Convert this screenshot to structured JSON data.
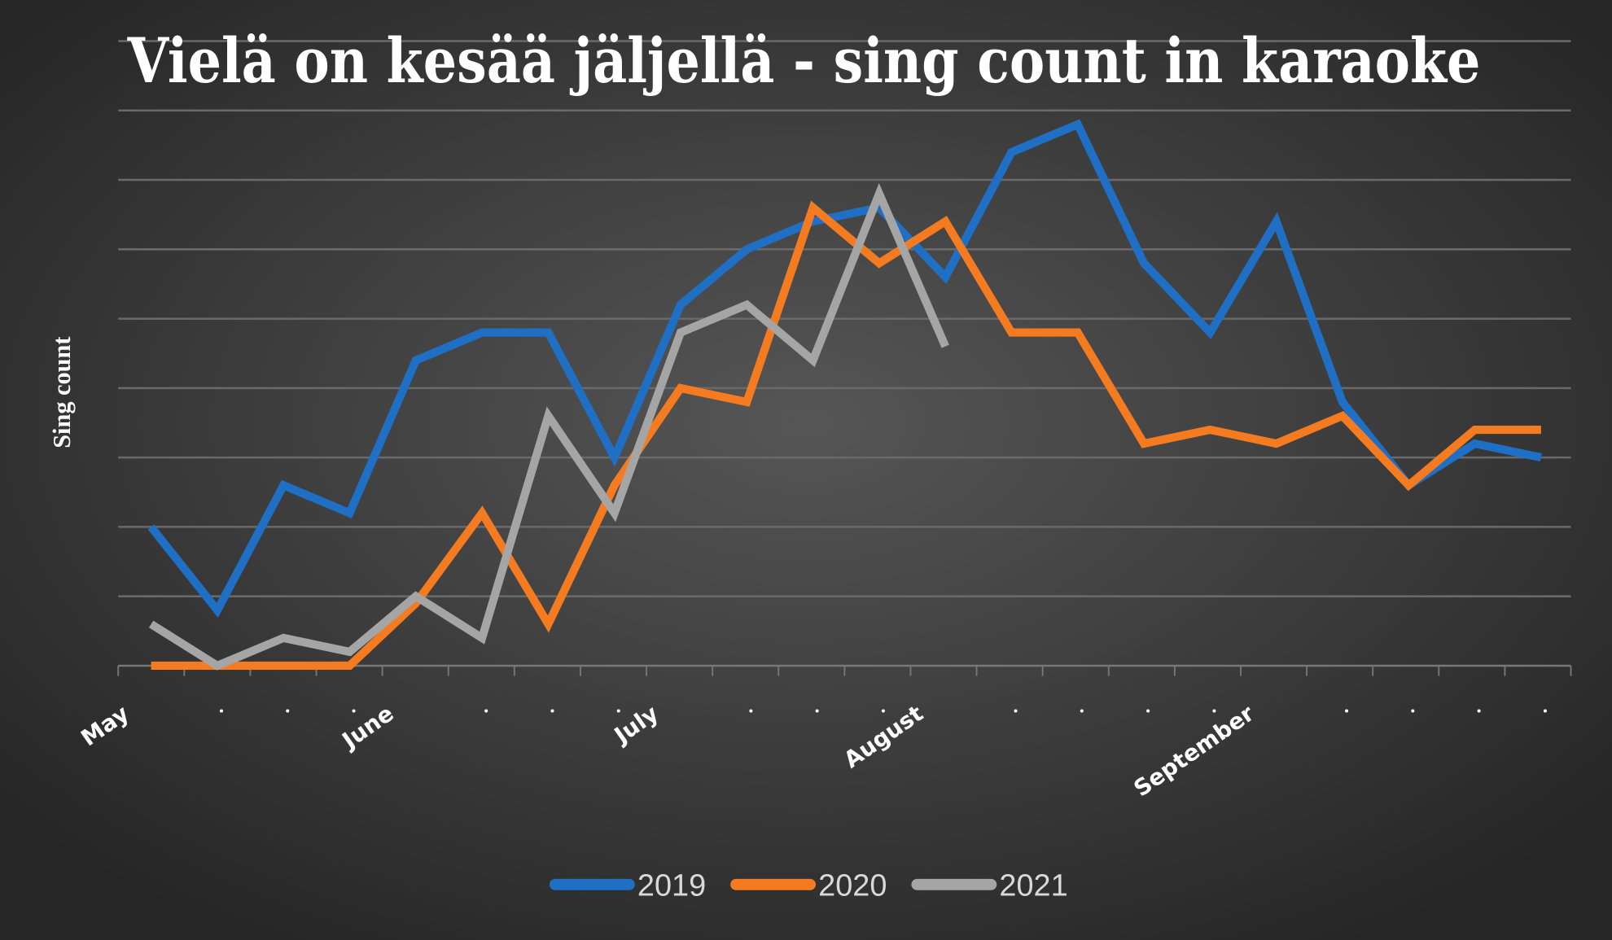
{
  "chart_data": {
    "type": "line",
    "title": "Vielä on kesää jäljellä - sing count in karaoke",
    "xlabel": "",
    "ylabel": "Sing count",
    "ylim": [
      0,
      9
    ],
    "y_ticks_labeled": false,
    "grid": true,
    "legend_placement": "bottom",
    "categories": [
      "May",
      "",
      "",
      "",
      "June",
      "",
      "",
      "",
      "July",
      "",
      "",
      "",
      "August",
      "",
      "",
      "",
      "",
      "September",
      "",
      "",
      "",
      ""
    ],
    "series": [
      {
        "name": "2019",
        "color": "#1f6fc5",
        "values": [
          2.0,
          0.8,
          2.6,
          2.2,
          4.4,
          4.8,
          4.8,
          3.0,
          5.2,
          6.0,
          6.4,
          6.6,
          5.6,
          7.4,
          7.8,
          5.8,
          4.8,
          6.4,
          3.8,
          2.6,
          3.2,
          3.0
        ]
      },
      {
        "name": "2020",
        "color": "#f47b20",
        "values": [
          0,
          0,
          0,
          0,
          0.9,
          2.2,
          0.6,
          2.6,
          4.0,
          3.8,
          6.6,
          5.8,
          6.4,
          4.8,
          4.8,
          3.2,
          3.4,
          3.2,
          3.6,
          2.6,
          3.4,
          3.4
        ]
      },
      {
        "name": "2021",
        "color": "#a5a5a5",
        "values": [
          0.6,
          0,
          0.4,
          0.2,
          1.0,
          0.4,
          3.6,
          2.2,
          4.8,
          5.2,
          4.4,
          6.8,
          4.6,
          null,
          null,
          null,
          null,
          null,
          null,
          null,
          null,
          null
        ]
      }
    ]
  }
}
